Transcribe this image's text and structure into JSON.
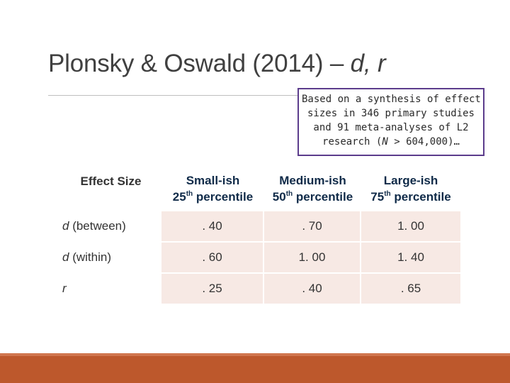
{
  "slide": {
    "title_main": "Plonsky & Oswald (2014) – ",
    "title_ital": "d, r"
  },
  "callout": {
    "line1": "Based on a synthesis of effect",
    "line2": "sizes in 346 primary studies",
    "line3": "and 91 meta-analyses of L2",
    "line4_pre": "research (",
    "line4_n": "N",
    "line4_post": " > 604,000)…"
  },
  "table": {
    "header_label": "Effect Size",
    "columns": [
      {
        "name": "Small-ish",
        "pct_num": "25",
        "pct_sup": "th",
        "pct_word": " percentile"
      },
      {
        "name": "Medium-ish",
        "pct_num": "50",
        "pct_sup": "th",
        "pct_word": " percentile"
      },
      {
        "name": "Large-ish",
        "pct_num": "75",
        "pct_sup": "th",
        "pct_word": " percentile"
      }
    ],
    "rows": [
      {
        "label_ital": "d",
        "label_rest": " (between)",
        "values": [
          ". 40",
          ". 70",
          "1. 00"
        ]
      },
      {
        "label_ital": "d",
        "label_rest": " (within)",
        "values": [
          ". 60",
          "1. 00",
          "1. 40"
        ]
      },
      {
        "label_ital": "r",
        "label_rest": "",
        "values": [
          ". 25",
          ". 40",
          ". 65"
        ]
      }
    ]
  },
  "colors": {
    "accent_orange": "#bd582c",
    "callout_border": "#5c3c8c",
    "cell_fill": "#f7e9e4",
    "header_text": "#0f2a48"
  }
}
